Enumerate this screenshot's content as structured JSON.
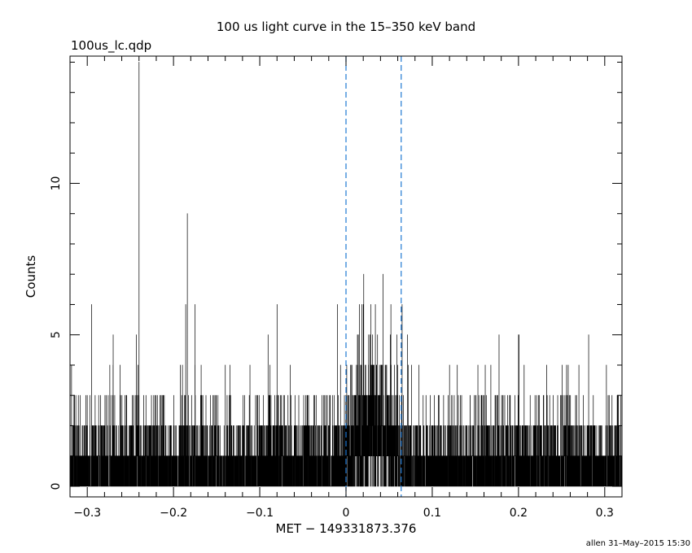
{
  "chart_data": {
    "type": "histogram",
    "title": "100 us light curve in the 15–350 keV band",
    "file_label": "100us_lc.qdp",
    "xlabel": "MET − 149331873.376",
    "ylabel": "Counts",
    "footer": "allen 31–May–2015 15:30",
    "xlim": [
      -0.32,
      0.32
    ],
    "ylim": [
      -0.35,
      14.2
    ],
    "bin_width": 0.0001,
    "x_ticks": [
      -0.3,
      -0.2,
      -0.1,
      0,
      0.1,
      0.2,
      0.3
    ],
    "x_tick_labels": [
      "−0.3",
      "−0.2",
      "−0.1",
      "0",
      "0.1",
      "0.2",
      "0.3"
    ],
    "y_ticks": [
      0,
      5,
      10
    ],
    "y_tick_labels": [
      "0",
      "5",
      "10"
    ],
    "markers": [
      0.0,
      0.064
    ],
    "marker_color": "#1e78d2",
    "peaks": [
      {
        "x": -0.24,
        "y": 14
      },
      {
        "x": -0.184,
        "y": 9
      },
      {
        "x": -0.295,
        "y": 6
      },
      {
        "x": -0.243,
        "y": 5
      },
      {
        "x": -0.27,
        "y": 5
      },
      {
        "x": -0.175,
        "y": 6
      },
      {
        "x": -0.08,
        "y": 6
      },
      {
        "x": 0.043,
        "y": 7
      },
      {
        "x": 0.034,
        "y": 6
      },
      {
        "x": 0.052,
        "y": 6
      },
      {
        "x": 0.02,
        "y": 6
      },
      {
        "x": -0.01,
        "y": 6
      },
      {
        "x": 0.065,
        "y": 6
      },
      {
        "x": 0.2,
        "y": 5
      },
      {
        "x": 0.12,
        "y": 4
      },
      {
        "x": 0.27,
        "y": 4
      }
    ]
  }
}
